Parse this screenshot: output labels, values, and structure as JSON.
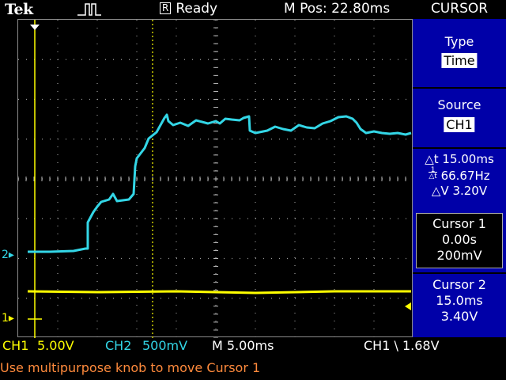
{
  "header": {
    "logo": "Tek",
    "trigger_icon": "rising-edge-pulse-icon",
    "status_badge": "R",
    "status": "Ready",
    "mpos": "M Pos: 22.80ms",
    "menu": "CURSOR"
  },
  "sidebar": {
    "type_label": "Type",
    "type_value": "Time",
    "source_label": "Source",
    "source_value": "CH1",
    "delta_t": "△t 15.00ms",
    "inv_delta_t_prefix": "1",
    "inv_delta_t_suffix": "△t",
    "freq": "66.67Hz",
    "delta_v": "△V 3.20V",
    "cursor1": {
      "label": "Cursor 1",
      "time": "0.00s",
      "value": "200mV"
    },
    "cursor2": {
      "label": "Cursor 2",
      "time": "15.0ms",
      "value": "3.40V"
    }
  },
  "markers": {
    "ch2": "2",
    "ch1": "1"
  },
  "bottom": {
    "ch1_label": "CH1",
    "ch1_scale": "5.00V",
    "ch2_label": "CH2",
    "ch2_scale": "500mV",
    "timebase": "M 5.00ms",
    "trigger": "CH1 \\ 1.68V"
  },
  "message": "Use multipurpose knob to move Cursor 1",
  "colors": {
    "ch1": "#ffff00",
    "ch2": "#33d6e6",
    "menu_bg": "#0000a8",
    "message": "#ff8a3c"
  }
}
